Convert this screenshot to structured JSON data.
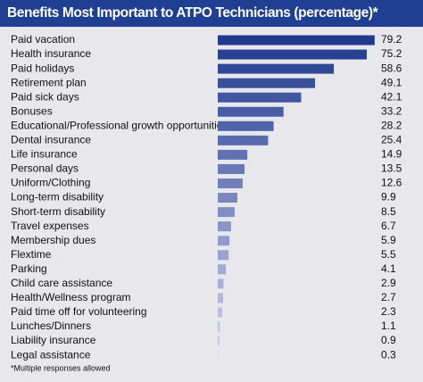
{
  "chart_data": {
    "type": "bar",
    "orientation": "horizontal",
    "title": "Benefits Most Important to ATPO Technicians (percentage)*",
    "categories": [
      "Paid vacation",
      "Health insurance",
      "Paid holidays",
      "Retirement plan",
      "Paid sick days",
      "Bonuses",
      "Educational/Professional growth opportunities",
      "Dental insurance",
      "Life insurance",
      "Personal days",
      "Uniform/Clothing",
      "Long-term disability",
      "Short-term disability",
      "Travel expenses",
      "Membership dues",
      "Flextime",
      "Parking",
      "Child care assistance",
      "Health/Wellness program",
      "Paid time off for volunteering",
      "Lunches/Dinners",
      "Liability insurance",
      "Legal assistance"
    ],
    "values": [
      79.2,
      75.2,
      58.6,
      49.1,
      42.1,
      33.2,
      28.2,
      25.4,
      14.9,
      13.5,
      12.6,
      9.9,
      8.5,
      6.7,
      5.9,
      5.5,
      4.1,
      2.9,
      2.7,
      2.3,
      1.1,
      0.9,
      0.3
    ],
    "colors": [
      "#1f3a8f",
      "#274193",
      "#2f4898",
      "#384f9c",
      "#4056a1",
      "#485da5",
      "#5064a9",
      "#586bae",
      "#6072b2",
      "#6979b7",
      "#7180bb",
      "#7987bf",
      "#818dc4",
      "#8994c8",
      "#929bcd",
      "#9aa2d1",
      "#a2a9d6",
      "#aab0da",
      "#b2b7de",
      "#bbbee3",
      "#c3c5e7",
      "#cbccec",
      "#d3d3f0"
    ],
    "footnote": "*Multiple responses allowed"
  }
}
